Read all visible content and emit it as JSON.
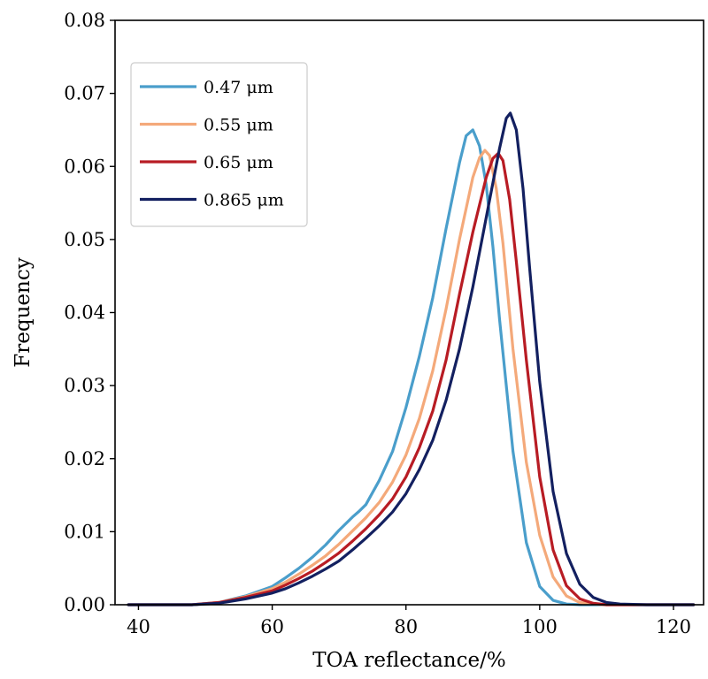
{
  "chart_data": {
    "type": "line",
    "xlabel": "TOA reflectance/%",
    "ylabel": "Frequency",
    "xlim": [
      36.5,
      124.5
    ],
    "ylim": [
      0,
      0.08
    ],
    "xticks": [
      40,
      60,
      80,
      100,
      120
    ],
    "yticks": [
      0,
      0.01,
      0.02,
      0.03,
      0.04,
      0.05,
      0.06,
      0.07,
      0.08
    ],
    "xtick_labels": [
      "40",
      "60",
      "80",
      "100",
      "120"
    ],
    "ytick_labels": [
      "0.00",
      "0.01",
      "0.02",
      "0.03",
      "0.04",
      "0.05",
      "0.06",
      "0.07",
      "0.08"
    ],
    "grid": false,
    "legend_position": "top-left",
    "series": [
      {
        "name": "0.47 μm",
        "color": "#4a9ecb",
        "x": [
          38.5,
          48,
          52,
          56,
          60,
          62,
          64,
          66,
          68,
          70,
          72,
          73,
          74,
          76,
          78,
          80,
          82,
          84,
          86,
          88,
          89,
          90,
          91,
          92,
          93,
          94,
          96,
          98,
          100,
          102,
          104,
          106,
          108,
          112,
          123
        ],
        "y": [
          0,
          0,
          0.0003,
          0.0012,
          0.0025,
          0.0037,
          0.005,
          0.0065,
          0.0082,
          0.0102,
          0.012,
          0.0128,
          0.0137,
          0.017,
          0.021,
          0.027,
          0.034,
          0.042,
          0.0515,
          0.0605,
          0.0642,
          0.065,
          0.0628,
          0.0575,
          0.049,
          0.039,
          0.021,
          0.0085,
          0.0025,
          0.0006,
          0.0001,
          0,
          0,
          0,
          0
        ]
      },
      {
        "name": "0.55 μm",
        "color": "#f4a97a",
        "x": [
          38.5,
          48,
          52,
          56,
          60,
          62,
          64,
          66,
          68,
          70,
          72,
          74,
          76,
          78,
          80,
          82,
          84,
          86,
          88,
          90,
          91,
          91.8,
          92.5,
          93.5,
          94.5,
          96,
          98,
          100,
          102,
          104,
          106,
          108,
          110,
          114,
          123
        ],
        "y": [
          0,
          0,
          0.0003,
          0.0011,
          0.0022,
          0.0031,
          0.0042,
          0.0054,
          0.0067,
          0.0083,
          0.0101,
          0.0119,
          0.014,
          0.0168,
          0.0205,
          0.0255,
          0.032,
          0.0405,
          0.05,
          0.0585,
          0.0612,
          0.0622,
          0.0615,
          0.057,
          0.0495,
          0.035,
          0.0195,
          0.0095,
          0.0038,
          0.0012,
          0.0003,
          0.0001,
          0,
          0,
          0
        ]
      },
      {
        "name": "0.65 μm",
        "color": "#b81c24",
        "x": [
          38.5,
          48,
          52,
          56,
          60,
          62,
          64,
          66,
          68,
          70,
          72,
          74,
          76,
          78,
          80,
          82,
          84,
          86,
          88,
          90,
          92,
          93,
          93.8,
          94.5,
          95.5,
          96.5,
          98,
          100,
          102,
          104,
          106,
          108,
          110,
          114,
          123
        ],
        "y": [
          0,
          0,
          0.0003,
          0.001,
          0.0019,
          0.0027,
          0.0036,
          0.0046,
          0.0058,
          0.0071,
          0.0087,
          0.0104,
          0.0123,
          0.0145,
          0.0175,
          0.0215,
          0.0265,
          0.0335,
          0.0425,
          0.051,
          0.0585,
          0.0611,
          0.0618,
          0.0608,
          0.0555,
          0.047,
          0.0335,
          0.0175,
          0.0075,
          0.0026,
          0.0008,
          0.0002,
          0,
          0,
          0
        ]
      },
      {
        "name": "0.865 μm",
        "color": "#132060",
        "x": [
          38.5,
          48,
          52,
          56,
          60,
          62,
          64,
          66,
          68,
          70,
          72,
          74,
          76,
          78,
          80,
          82,
          84,
          86,
          88,
          90,
          92,
          94,
          95,
          95.6,
          96.5,
          97.5,
          98.5,
          100,
          102,
          104,
          106,
          108,
          110,
          112,
          116,
          123
        ],
        "y": [
          0,
          0,
          0.0002,
          0.0008,
          0.0016,
          0.0022,
          0.003,
          0.0039,
          0.0049,
          0.006,
          0.0075,
          0.0091,
          0.0108,
          0.0127,
          0.0152,
          0.0185,
          0.0225,
          0.028,
          0.035,
          0.0435,
          0.053,
          0.0625,
          0.0666,
          0.0673,
          0.065,
          0.057,
          0.046,
          0.0305,
          0.0155,
          0.007,
          0.0028,
          0.001,
          0.0003,
          0.0001,
          0,
          0
        ]
      }
    ]
  }
}
